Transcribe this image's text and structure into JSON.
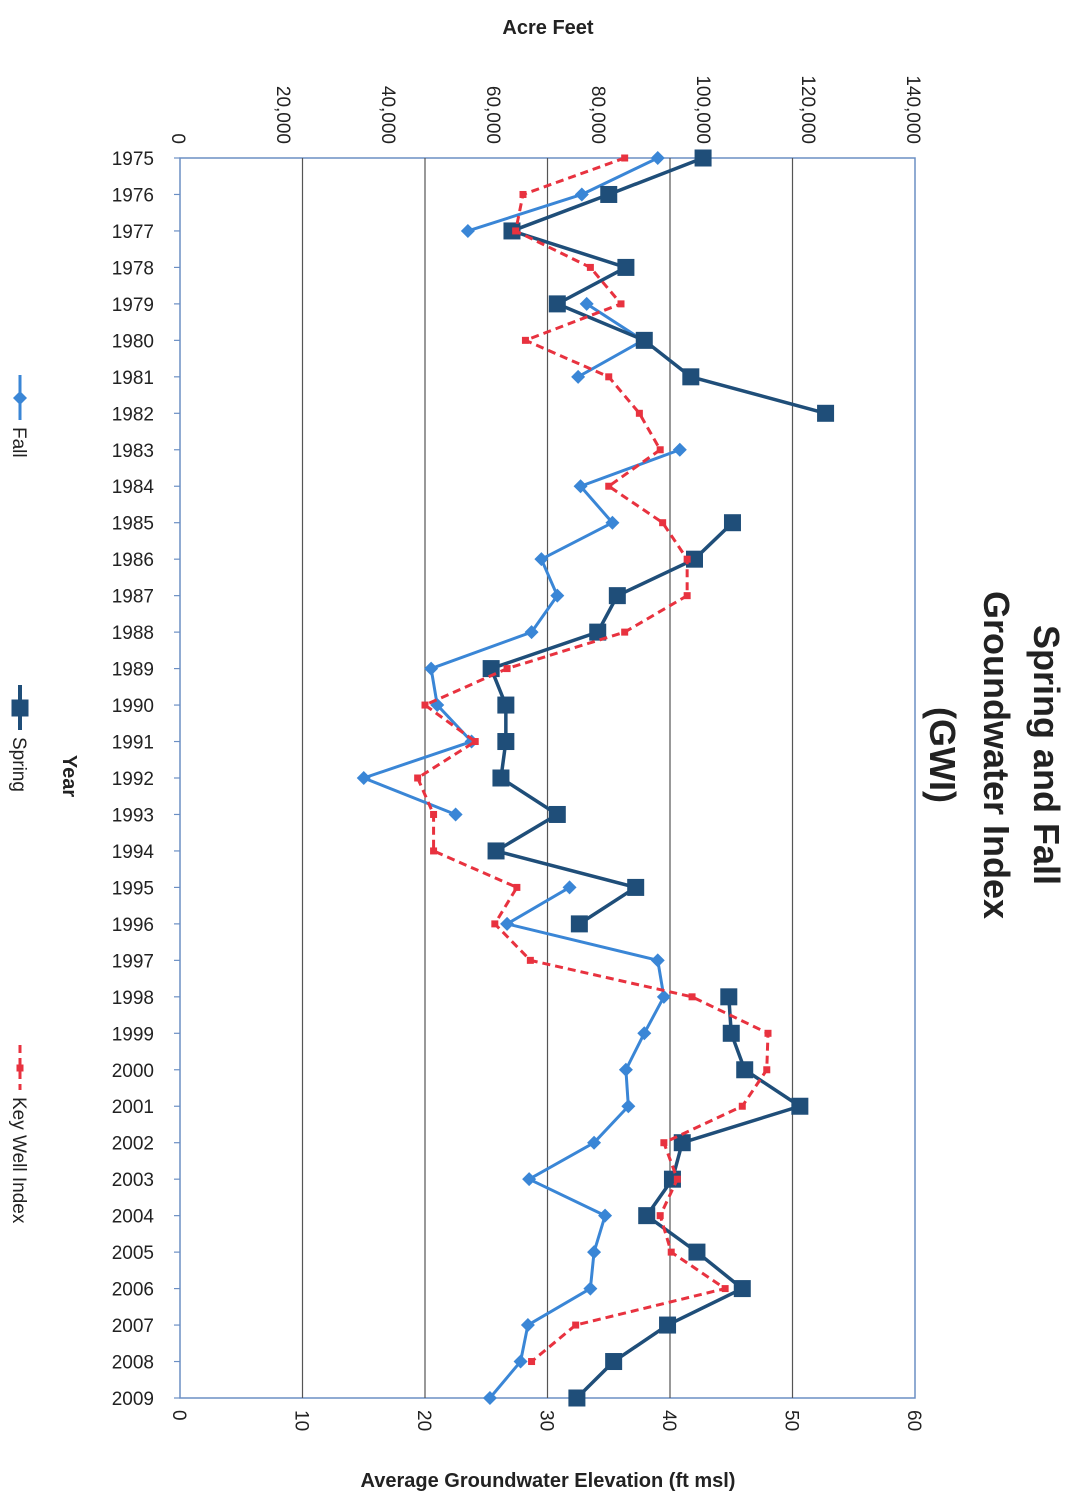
{
  "chart_data": {
    "type": "line",
    "title": "Spring and Fall Groundwater Index (GWI)",
    "title_lines": [
      "Spring and Fall",
      "Groundwater Index",
      "(GWI)"
    ],
    "xlabel": "Year",
    "ylabel_left": "Average Groundwater Elevation (ft msl)",
    "ylabel_right": "Acre Feet",
    "orientation": "rotated 90° clockwise",
    "ylim_elevation": [
      0,
      60
    ],
    "ylim_acre_feet": [
      0,
      140000
    ],
    "elevation_ticks": [
      "0",
      "10",
      "20",
      "30",
      "40",
      "50",
      "60"
    ],
    "acre_ticks": [
      "0",
      "20,000",
      "40,000",
      "60,000",
      "80,000",
      "100,000",
      "120,000",
      "140,000"
    ],
    "grid": true,
    "legend_position": "bottom",
    "categories": [
      "1975",
      "1976",
      "1977",
      "1978",
      "1979",
      "1980",
      "1981",
      "1982",
      "1983",
      "1984",
      "1985",
      "1986",
      "1987",
      "1988",
      "1989",
      "1990",
      "1991",
      "1992",
      "1993",
      "1994",
      "1995",
      "1996",
      "1997",
      "1998",
      "1999",
      "2000",
      "2001",
      "2002",
      "2003",
      "2004",
      "2005",
      "2006",
      "2007",
      "2008",
      "2009"
    ],
    "series": [
      {
        "name": "Fall",
        "axis": "elevation",
        "color": "#3a86d6",
        "marker": "diamond",
        "values": [
          39.0,
          32.8,
          23.5,
          null,
          33.2,
          37.8,
          32.5,
          null,
          40.8,
          32.7,
          35.3,
          29.5,
          30.8,
          28.7,
          20.5,
          21.0,
          23.8,
          15.0,
          22.5,
          null,
          31.8,
          26.7,
          39.0,
          39.5,
          37.9,
          36.4,
          36.6,
          33.8,
          28.5,
          34.7,
          33.8,
          33.5,
          28.4,
          27.8,
          25.3
        ]
      },
      {
        "name": "Spring",
        "axis": "elevation",
        "color": "#1f4e79",
        "marker": "square",
        "values": [
          42.7,
          35.0,
          27.1,
          36.4,
          30.8,
          37.9,
          41.7,
          52.7,
          null,
          null,
          45.1,
          42.0,
          35.7,
          34.1,
          25.4,
          26.6,
          26.6,
          26.2,
          30.8,
          25.8,
          37.2,
          32.6,
          null,
          44.8,
          45.0,
          46.1,
          50.6,
          41.0,
          40.2,
          38.1,
          42.2,
          45.9,
          39.8,
          35.4,
          32.4
        ]
      },
      {
        "name": "Key Well Index",
        "axis": "elevation",
        "color": "#e8323f",
        "marker": "square-small",
        "dashed": true,
        "values": [
          36.3,
          28.0,
          27.4,
          33.5,
          36.0,
          28.2,
          35.0,
          37.5,
          39.2,
          35.0,
          39.4,
          41.4,
          41.4,
          36.3,
          26.7,
          20.0,
          24.1,
          19.4,
          20.7,
          20.7,
          27.5,
          25.7,
          28.6,
          41.8,
          48.0,
          47.9,
          45.9,
          39.5,
          40.6,
          39.2,
          40.1,
          44.5,
          32.3,
          28.7,
          null
        ]
      }
    ]
  }
}
